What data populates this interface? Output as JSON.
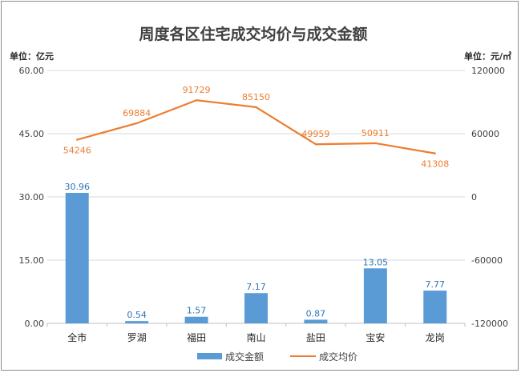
{
  "chart_data": {
    "type": "bar+line",
    "title": "周度各区住宅成交均价与成交金额",
    "left_unit": "单位：亿元",
    "right_unit": "单位：元/㎡",
    "categories": [
      "全市",
      "罗湖",
      "福田",
      "南山",
      "盐田",
      "宝安",
      "龙岗"
    ],
    "series": [
      {
        "name": "成交金额",
        "type": "bar",
        "axis": "left",
        "color": "#5b9bd5",
        "values": [
          30.96,
          0.54,
          1.57,
          7.17,
          0.87,
          13.05,
          7.77
        ],
        "labels": [
          "30.96",
          "0.54",
          "1.57",
          "7.17",
          "0.87",
          "13.05",
          "7.77"
        ]
      },
      {
        "name": "成交均价",
        "type": "line",
        "axis": "right",
        "color": "#ed7d31",
        "values": [
          54246,
          69884,
          91729,
          85150,
          49959,
          50911,
          41308
        ],
        "labels": [
          "54246",
          "69884",
          "91729",
          "85150",
          "49959",
          "50911",
          "41308"
        ]
      }
    ],
    "left_axis": {
      "ylim": [
        0,
        60
      ],
      "ticks": [
        "0.00",
        "15.00",
        "30.00",
        "45.00",
        "60.00"
      ]
    },
    "right_axis": {
      "ylim": [
        -120000,
        120000
      ],
      "ticks": [
        "-120000",
        "-60000",
        "0",
        "60000",
        "120000"
      ]
    },
    "grid": true,
    "legend": "bottom"
  }
}
